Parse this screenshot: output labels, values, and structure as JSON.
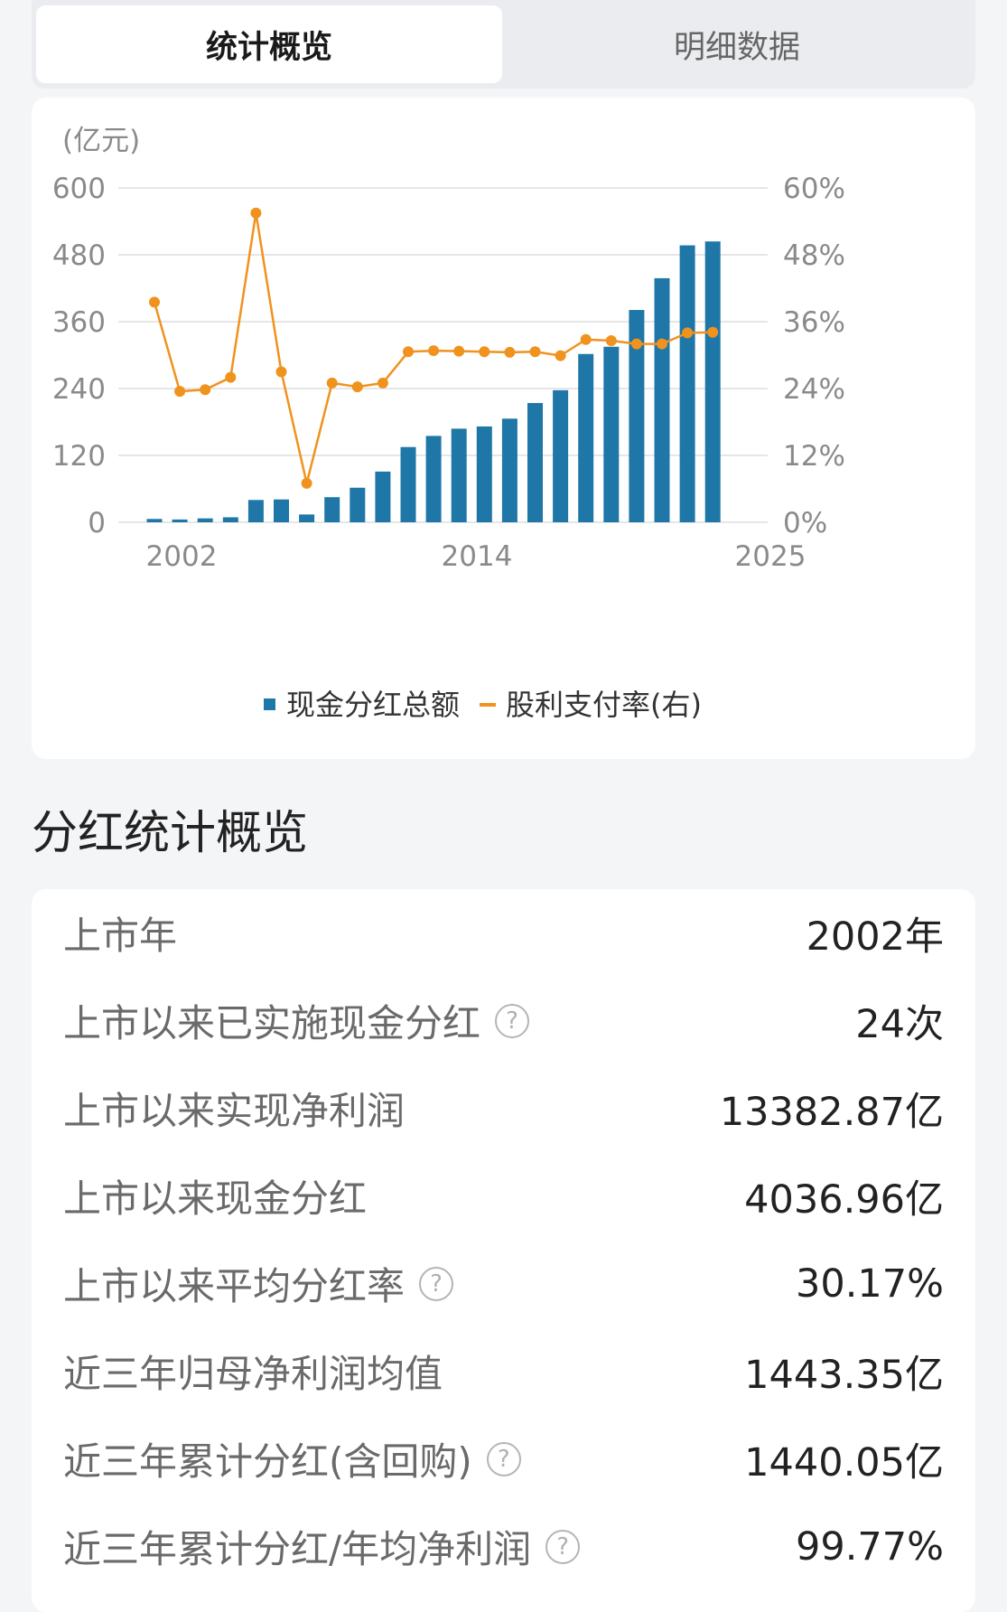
{
  "tabs": [
    {
      "label": "统计概览",
      "active": true
    },
    {
      "label": "明细数据",
      "active": false
    }
  ],
  "chart_data": {
    "type": "bar",
    "unit_label": "(亿元)",
    "years": [
      2002,
      2003,
      2004,
      2005,
      2006,
      2007,
      2008,
      2009,
      2010,
      2011,
      2012,
      2013,
      2014,
      2015,
      2016,
      2017,
      2018,
      2019,
      2020,
      2021,
      2022,
      2023,
      2024
    ],
    "x_tick_labels": [
      "2002",
      "2014",
      "2025"
    ],
    "y_left_ticks": [
      "600",
      "480",
      "360",
      "240",
      "120",
      "0"
    ],
    "y_right_ticks": [
      "60%",
      "48%",
      "36%",
      "24%",
      "12%",
      "0%"
    ],
    "ylim_left": [
      0,
      600
    ],
    "ylim_right": [
      0,
      60
    ],
    "grid": true,
    "legend_position": "bottom",
    "series": [
      {
        "name": "现金分红总额",
        "type": "bar",
        "color": "#1f77a8",
        "values": [
          6,
          5,
          7,
          9,
          40,
          41,
          14,
          45,
          62,
          91,
          135,
          155,
          168,
          172,
          186,
          214,
          237,
          302,
          315,
          381,
          438,
          497,
          504
        ]
      },
      {
        "name": "股利支付率(右)",
        "type": "line",
        "color": "#f0921e",
        "values": [
          39.5,
          23.5,
          23.8,
          26.0,
          55.5,
          27.0,
          7.0,
          25.0,
          24.3,
          25.0,
          30.6,
          30.8,
          30.7,
          30.6,
          30.5,
          30.6,
          29.9,
          32.8,
          32.6,
          32.0,
          32.0,
          34.0,
          34.1
        ]
      }
    ]
  },
  "section": {
    "title": "分红统计概览"
  },
  "stats": [
    {
      "label": "上市年",
      "value": "2002年",
      "help": false
    },
    {
      "label": "上市以来已实施现金分红",
      "value": "24次",
      "help": true
    },
    {
      "label": "上市以来实现净利润",
      "value": "13382.87亿",
      "help": false
    },
    {
      "label": "上市以来现金分红",
      "value": "4036.96亿",
      "help": false
    },
    {
      "label": "上市以来平均分红率",
      "value": "30.17%",
      "help": true
    },
    {
      "label": "近三年归母净利润均值",
      "value": "1443.35亿",
      "help": false
    },
    {
      "label": "近三年累计分红(含回购)",
      "value": "1440.05亿",
      "help": true
    },
    {
      "label": "近三年累计分红/年均净利润",
      "value": "99.77%",
      "help": true
    }
  ],
  "help_icon": {
    "name": "question-circle-icon",
    "glyph": "?"
  }
}
